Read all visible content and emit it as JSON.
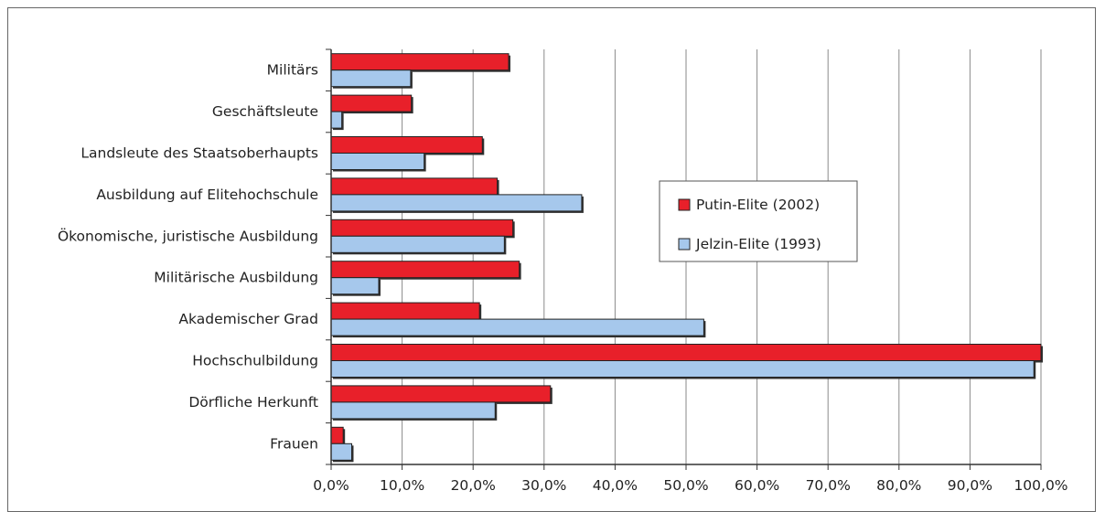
{
  "chart_data": {
    "type": "bar",
    "orientation": "horizontal",
    "categories": [
      "Militärs",
      "Geschäftsleute",
      "Landsleute des Staatsoberhaupts",
      "Ausbildung auf Elitehochschule",
      "Ökonomische, juristische Ausbildung",
      "Militärische Ausbildung",
      "Akademischer Grad",
      "Hochschulbildung",
      "Dörfliche Herkunft",
      "Frauen"
    ],
    "series": [
      {
        "name": "Putin-Elite (2002)",
        "color": "#e8202a",
        "values": [
          25.0,
          11.3,
          21.3,
          23.4,
          25.6,
          26.5,
          20.9,
          100.0,
          30.9,
          1.7
        ]
      },
      {
        "name": "Jelzin-Elite (1993)",
        "color": "#a6c8ec",
        "values": [
          11.2,
          1.5,
          13.1,
          35.3,
          24.4,
          6.7,
          52.5,
          99.0,
          23.1,
          2.9
        ]
      }
    ],
    "xlim": [
      0,
      100
    ],
    "ticks": [
      "0,0%",
      "10,0%",
      "20,0%",
      "30,0%",
      "40,0%",
      "50,0%",
      "60,0%",
      "70,0%",
      "80,0%",
      "90,0%",
      "100,0%"
    ],
    "grid": true,
    "legend_position": "center-right"
  }
}
